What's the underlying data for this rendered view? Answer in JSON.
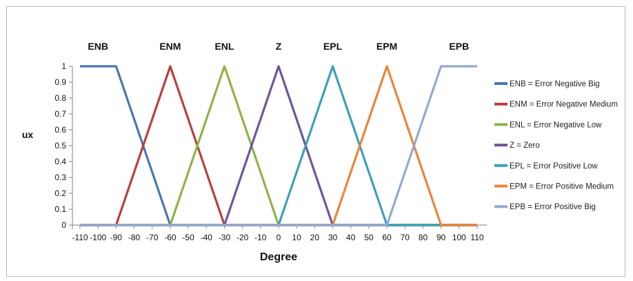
{
  "chart_data": {
    "type": "line",
    "xlabel": "Degree",
    "ylabel": "ux",
    "xlim": [
      -110,
      110
    ],
    "ylim": [
      0,
      1
    ],
    "x_ticks": [
      -110,
      -100,
      -90,
      -80,
      -70,
      -60,
      -50,
      -40,
      -30,
      -20,
      -10,
      0,
      10,
      20,
      30,
      40,
      50,
      60,
      70,
      80,
      90,
      100,
      110
    ],
    "y_ticks": [
      0,
      0.1,
      0.2,
      0.3,
      0.4,
      0.5,
      0.6,
      0.7,
      0.8,
      0.9,
      1
    ],
    "y_tick_labels": [
      "0",
      "0.1",
      "0.2",
      "0.3",
      "0.4",
      "0.5",
      "0.6",
      "0.7",
      "0.8",
      "0.9",
      "1"
    ],
    "grid": false,
    "legend_position": "right",
    "series": [
      {
        "name": "ENB = Error Negative Big",
        "label": "ENB",
        "color": "#4a76ae",
        "x": [
          -110,
          -90,
          -60,
          110
        ],
        "y": [
          1,
          1,
          0,
          0
        ],
        "label_x": -100
      },
      {
        "name": "ENM = Error Negative Medium",
        "label": "ENM",
        "color": "#b8403e",
        "x": [
          -110,
          -90,
          -60,
          -30,
          110
        ],
        "y": [
          0,
          0,
          1,
          0,
          0
        ],
        "label_x": -60
      },
      {
        "name": "ENL = Error Negative Low",
        "label": "ENL",
        "color": "#8db546",
        "x": [
          -110,
          -60,
          -30,
          0,
          110
        ],
        "y": [
          0,
          0,
          1,
          0,
          0
        ],
        "label_x": -30
      },
      {
        "name": "Z = Zero",
        "label": "Z",
        "color": "#72539a",
        "x": [
          -110,
          -30,
          0,
          30,
          110
        ],
        "y": [
          0,
          0,
          1,
          0,
          0
        ],
        "label_x": 0
      },
      {
        "name": "EPL = Error Positive Low",
        "label": "EPL",
        "color": "#3ba1bb",
        "x": [
          -110,
          0,
          30,
          60,
          110
        ],
        "y": [
          0,
          0,
          1,
          0,
          0
        ],
        "label_x": 30
      },
      {
        "name": "EPM = Error Positive Medium",
        "label": "EPM",
        "color": "#eb8538",
        "x": [
          -110,
          30,
          60,
          90,
          110
        ],
        "y": [
          0,
          0,
          1,
          0,
          0
        ],
        "label_x": 60
      },
      {
        "name": "EPB = Error Positive Big",
        "label": "EPB",
        "color": "#93a9d3",
        "x": [
          -110,
          60,
          90,
          110
        ],
        "y": [
          0,
          0,
          1,
          1
        ],
        "label_x": 100
      }
    ]
  }
}
